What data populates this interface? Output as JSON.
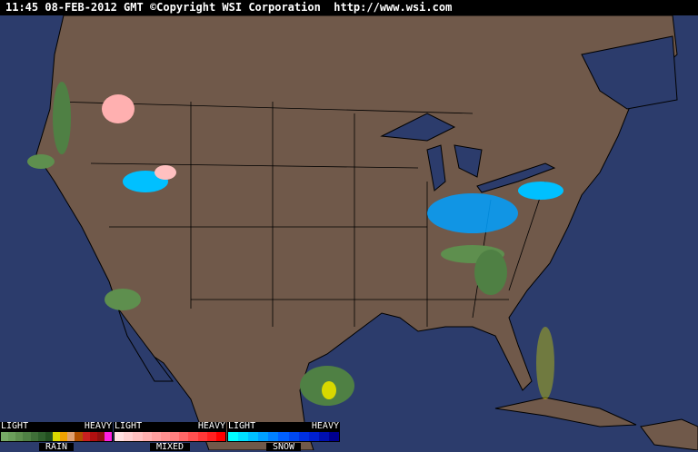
{
  "header": {
    "timestamp": "11:45 08-FEB-2012 GMT",
    "copyright": "©Copyright WSI Corporation",
    "url": "http://www.wsi.com"
  },
  "colors": {
    "ocean": "#2c3c6c",
    "land": "#70594a",
    "borders": "#000000"
  },
  "legend": [
    {
      "name": "RAIN",
      "light": "LIGHT",
      "heavy": "HEAVY",
      "colors": [
        "#77aa66",
        "#6b9e5a",
        "#5e8f4e",
        "#4f8044",
        "#3f6f38",
        "#2f602c",
        "#225020",
        "#d8d800",
        "#f0a000",
        "#e0a070",
        "#b05000",
        "#c82020",
        "#b01010",
        "#901010",
        "#ff20e0"
      ]
    },
    {
      "name": "MIXED",
      "light": "LIGHT",
      "heavy": "HEAVY",
      "colors": [
        "#ffe0e0",
        "#ffd0d0",
        "#ffc0c0",
        "#ffb0b0",
        "#ffa0a0",
        "#ff9090",
        "#ff8080",
        "#ff6868",
        "#ff5050",
        "#ff3838",
        "#ff2020",
        "#ff0000"
      ]
    },
    {
      "name": "SNOW",
      "light": "LIGHT",
      "heavy": "HEAVY",
      "colors": [
        "#00ffff",
        "#00e0ff",
        "#00c0ff",
        "#00a0ff",
        "#0080ff",
        "#0060ff",
        "#0048f0",
        "#0030e0",
        "#0020d0",
        "#0010b0",
        "#000090"
      ]
    }
  ]
}
